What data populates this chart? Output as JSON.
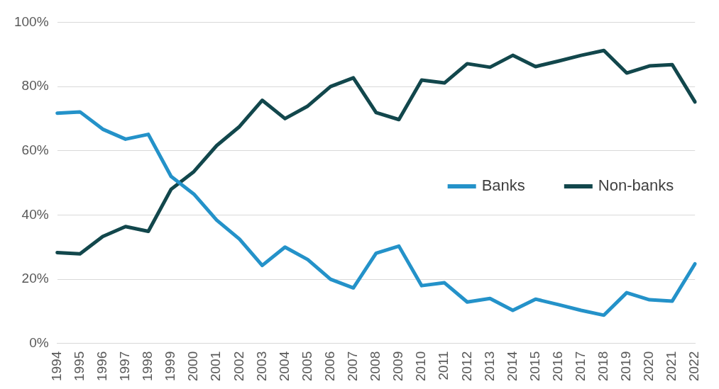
{
  "chart_data": {
    "type": "line",
    "categories": [
      "1994",
      "1995",
      "1996",
      "1997",
      "1998",
      "1999",
      "2000",
      "2001",
      "2002",
      "2003",
      "2004",
      "2005",
      "2006",
      "2007",
      "2008",
      "2009",
      "2010",
      "2011",
      "2012",
      "2013",
      "2014",
      "2015",
      "2016",
      "2017",
      "2018",
      "2019",
      "2020",
      "2021",
      "2022"
    ],
    "series": [
      {
        "name": "Banks",
        "color": "#2492c9",
        "values": [
          71.7,
          72.1,
          66.7,
          63.6,
          65.1,
          52,
          46.5,
          38.4,
          32.5,
          24.3,
          30,
          26.1,
          20,
          17.3,
          28.1,
          30.3,
          18,
          18.9,
          12.9,
          14,
          10.3,
          13.8,
          12.1,
          10.3,
          8.8,
          15.8,
          13.6,
          13.2,
          24.8
        ]
      },
      {
        "name": "Non-banks",
        "color": "#12474c",
        "values": [
          28.3,
          27.9,
          33.3,
          36.4,
          34.9,
          48,
          53.5,
          61.6,
          67.5,
          75.7,
          70,
          73.9,
          80,
          82.7,
          71.9,
          69.7,
          82,
          81.1,
          87.1,
          86,
          89.7,
          86.2,
          87.9,
          89.7,
          91.2,
          84.2,
          86.4,
          86.8,
          75.2
        ]
      }
    ],
    "ylim": [
      0,
      100
    ],
    "yticks": [
      {
        "value": 0,
        "label": "0%"
      },
      {
        "value": 20,
        "label": "20%"
      },
      {
        "value": 40,
        "label": "40%"
      },
      {
        "value": 60,
        "label": "60%"
      },
      {
        "value": 80,
        "label": "80%"
      },
      {
        "value": 100,
        "label": "100%"
      }
    ],
    "grid": "y",
    "legend": "right",
    "marker": "none",
    "line_style": "solid"
  }
}
